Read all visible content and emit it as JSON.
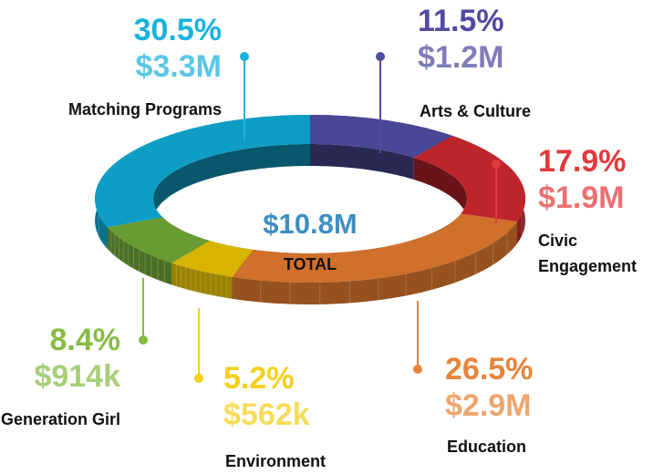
{
  "chart_data": {
    "type": "pie",
    "donut": true,
    "center_value": "$10.8M",
    "center_label": "TOTAL",
    "categories": [
      "Arts & Culture",
      "Civic Engagement",
      "Education",
      "Environment",
      "Generation Girl",
      "Matching Programs"
    ],
    "values": [
      11.5,
      17.9,
      26.5,
      5.2,
      8.4,
      30.5
    ],
    "value_labels": [
      "11.5%",
      "17.9%",
      "26.5%",
      "5.2%",
      "8.4%",
      "30.5%"
    ],
    "amount_labels": [
      "$1.2M",
      "$1.9M",
      "$2.9M",
      "$562k",
      "$914k",
      "$3.3M"
    ],
    "colors": [
      "#4a4896",
      "#bd252b",
      "#d0702a",
      "#d6b400",
      "#689c33",
      "#0e9ec5"
    ],
    "label_colors": [
      "#4e4ba0",
      "#e23a3d",
      "#e8843a",
      "#f5cf1a",
      "#86bc45",
      "#1ab2de"
    ]
  }
}
